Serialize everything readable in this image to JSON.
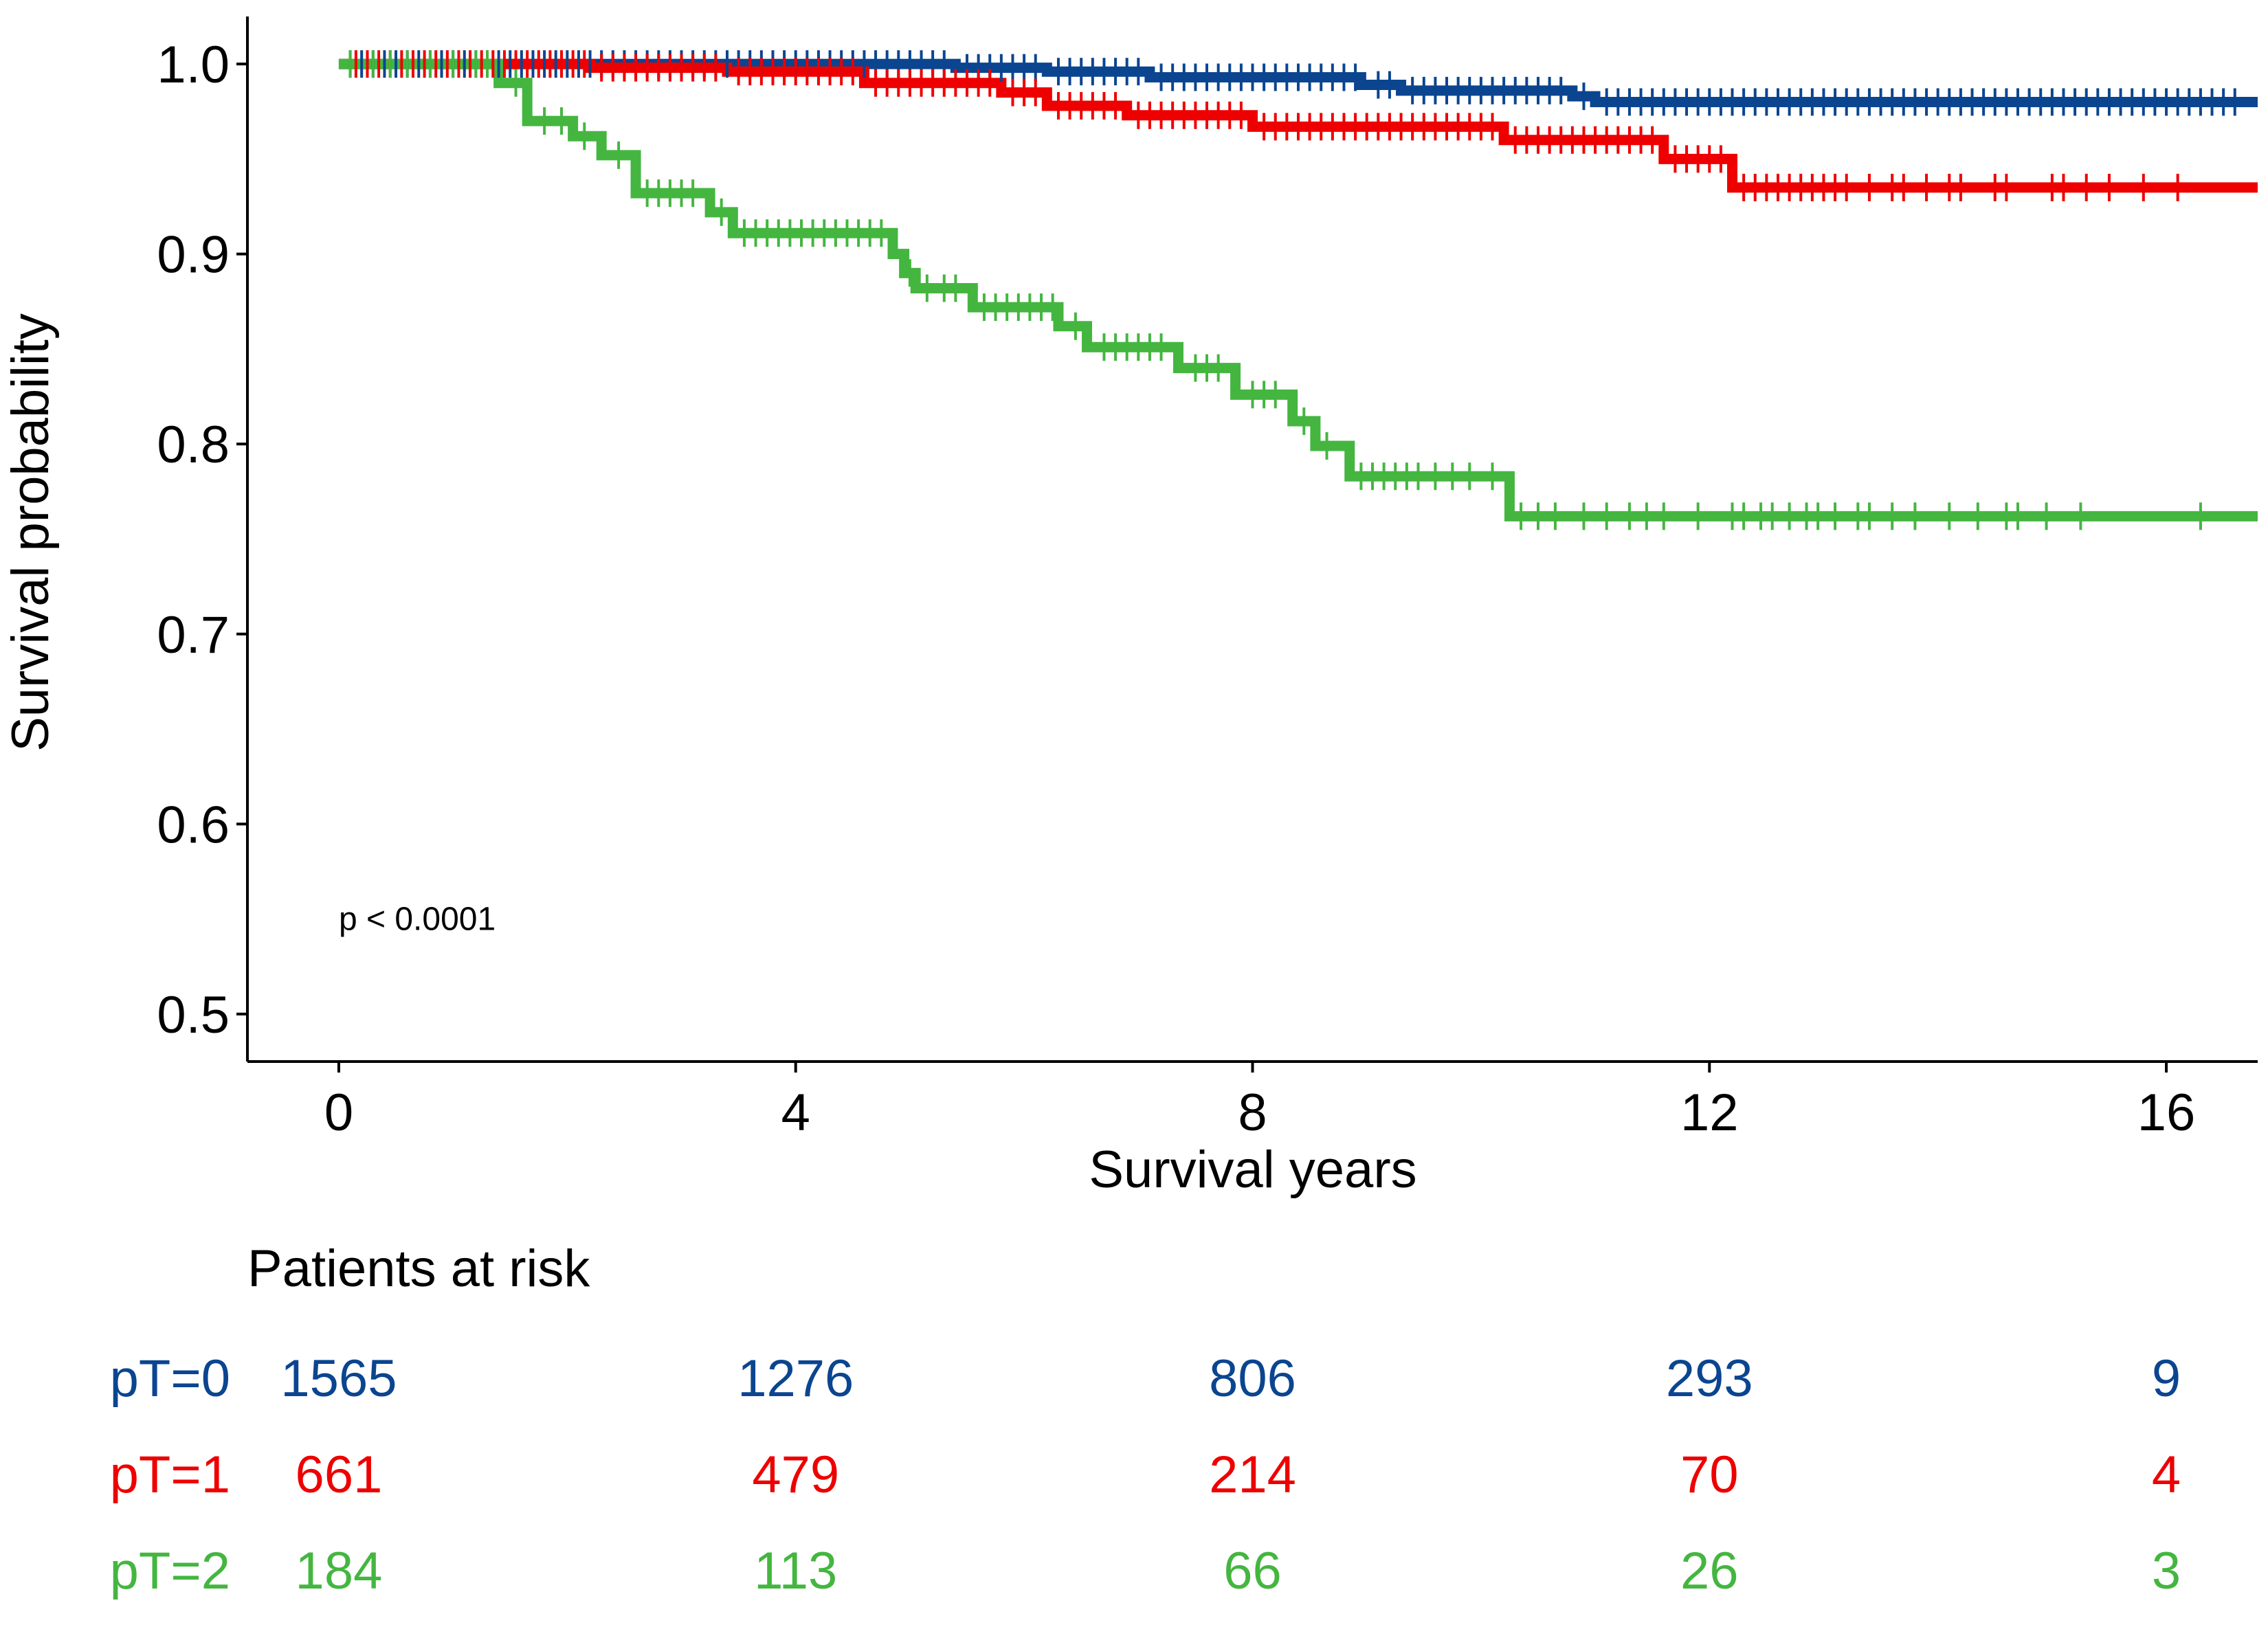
{
  "chart_data": {
    "type": "line",
    "subtype": "kaplan-meier",
    "xlabel": "Survival years",
    "ylabel": "Survival probability",
    "xlim": [
      -0.8,
      16.8
    ],
    "ylim": [
      0.475,
      1.025
    ],
    "xticks": [
      0,
      4,
      8,
      12,
      16
    ],
    "yticks": [
      0.5,
      0.6,
      0.7,
      0.8,
      0.9,
      1.0
    ],
    "ytick_labels": [
      "0.5",
      "0.6",
      "0.7",
      "0.8",
      "0.9",
      "1.0"
    ],
    "grid": false,
    "legend": "none",
    "annotation": "p < 0.0001",
    "annotation_pos": {
      "x": 0.0,
      "y": 0.55
    },
    "series": [
      {
        "name": "pT=0",
        "color": "#0B4590",
        "steps": [
          [
            0,
            1.0
          ],
          [
            5.4,
            0.998
          ],
          [
            6.2,
            0.996
          ],
          [
            7.1,
            0.993
          ],
          [
            8.95,
            0.989
          ],
          [
            9.3,
            0.986
          ],
          [
            10.8,
            0.983
          ],
          [
            11.0,
            0.98
          ],
          [
            16.8,
            0.98
          ]
        ],
        "censor_x": [
          0.1,
          0.2,
          0.3,
          0.4,
          0.5,
          0.6,
          0.7,
          0.8,
          0.9,
          1.0,
          1.1,
          1.2,
          1.3,
          1.4,
          1.5,
          1.6,
          1.7,
          1.8,
          1.9,
          2.0,
          2.1,
          2.2,
          2.3,
          2.4,
          2.5,
          2.6,
          2.7,
          2.8,
          2.9,
          3.0,
          3.1,
          3.2,
          3.3,
          3.4,
          3.5,
          3.6,
          3.7,
          3.8,
          3.9,
          4.0,
          4.1,
          4.2,
          4.3,
          4.4,
          4.5,
          4.6,
          4.7,
          4.8,
          4.9,
          5.0,
          5.1,
          5.2,
          5.3,
          5.5,
          5.6,
          5.7,
          5.8,
          5.9,
          6.0,
          6.1,
          6.3,
          6.4,
          6.5,
          6.6,
          6.7,
          6.8,
          6.9,
          7.0,
          7.2,
          7.3,
          7.4,
          7.5,
          7.6,
          7.7,
          7.8,
          7.9,
          8.0,
          8.1,
          8.2,
          8.3,
          8.4,
          8.5,
          8.6,
          8.7,
          8.8,
          8.9,
          9.1,
          9.2,
          9.4,
          9.5,
          9.6,
          9.7,
          9.8,
          9.9,
          10.0,
          10.1,
          10.2,
          10.3,
          10.4,
          10.5,
          10.6,
          10.7,
          10.9,
          11.1,
          11.2,
          11.3,
          11.4,
          11.5,
          11.6,
          11.7,
          11.8,
          11.9,
          12.0,
          12.1,
          12.2,
          12.3,
          12.4,
          12.5,
          12.6,
          12.7,
          12.8,
          12.9,
          13.0,
          13.1,
          13.2,
          13.3,
          13.4,
          13.5,
          13.6,
          13.7,
          13.8,
          13.9,
          14.0,
          14.1,
          14.2,
          14.3,
          14.4,
          14.5,
          14.6,
          14.7,
          14.8,
          14.9,
          15.0,
          15.1,
          15.2,
          15.3,
          15.4,
          15.5,
          15.6,
          15.7,
          15.8,
          15.9,
          16.0,
          16.1,
          16.2,
          16.3,
          16.4,
          16.5,
          16.6
        ],
        "at_risk": [
          "1565",
          "1276",
          "806",
          "293",
          "9"
        ]
      },
      {
        "name": "pT=1",
        "color": "#EE0000",
        "steps": [
          [
            0,
            1.0
          ],
          [
            2.2,
            0.998
          ],
          [
            3.4,
            0.996
          ],
          [
            4.6,
            0.99
          ],
          [
            5.8,
            0.985
          ],
          [
            6.2,
            0.978
          ],
          [
            6.9,
            0.973
          ],
          [
            8.0,
            0.967
          ],
          [
            10.2,
            0.96
          ],
          [
            11.6,
            0.95
          ],
          [
            12.2,
            0.935
          ],
          [
            16.8,
            0.935
          ]
        ],
        "censor_x": [
          0.15,
          0.25,
          0.35,
          0.45,
          0.55,
          0.65,
          0.75,
          0.85,
          0.95,
          1.05,
          1.15,
          1.25,
          1.35,
          1.45,
          1.55,
          1.65,
          1.75,
          1.85,
          1.95,
          2.05,
          2.15,
          2.3,
          2.4,
          2.5,
          2.6,
          2.7,
          2.8,
          2.9,
          3.0,
          3.1,
          3.2,
          3.3,
          3.5,
          3.6,
          3.7,
          3.8,
          3.9,
          4.0,
          4.1,
          4.2,
          4.3,
          4.4,
          4.5,
          4.7,
          4.8,
          4.9,
          5.0,
          5.1,
          5.2,
          5.3,
          5.4,
          5.5,
          5.6,
          5.7,
          5.9,
          6.0,
          6.1,
          6.3,
          6.4,
          6.5,
          6.6,
          6.7,
          6.8,
          7.0,
          7.1,
          7.2,
          7.3,
          7.4,
          7.5,
          7.6,
          7.7,
          7.8,
          7.9,
          8.1,
          8.2,
          8.3,
          8.4,
          8.5,
          8.6,
          8.7,
          8.8,
          8.9,
          9.0,
          9.1,
          9.2,
          9.3,
          9.4,
          9.5,
          9.6,
          9.7,
          9.8,
          9.9,
          10.0,
          10.1,
          10.3,
          10.4,
          10.5,
          10.6,
          10.7,
          10.8,
          10.9,
          11.0,
          11.1,
          11.2,
          11.3,
          11.4,
          11.5,
          11.7,
          11.8,
          11.9,
          12.0,
          12.1,
          12.3,
          12.4,
          12.5,
          12.6,
          12.7,
          12.8,
          12.9,
          13.0,
          13.1,
          13.2,
          13.4,
          13.6,
          13.7,
          13.9,
          14.1,
          14.2,
          14.5,
          14.6,
          15.0,
          15.1,
          15.3,
          15.5,
          15.8,
          16.1
        ],
        "at_risk": [
          "661",
          "479",
          "214",
          "70",
          "4"
        ]
      },
      {
        "name": "pT=2",
        "color": "#44B640",
        "steps": [
          [
            0,
            1.0
          ],
          [
            1.4,
            0.99
          ],
          [
            1.65,
            0.97
          ],
          [
            2.05,
            0.962
          ],
          [
            2.3,
            0.952
          ],
          [
            2.6,
            0.932
          ],
          [
            3.25,
            0.922
          ],
          [
            3.45,
            0.911
          ],
          [
            4.85,
            0.9
          ],
          [
            4.95,
            0.89
          ],
          [
            5.05,
            0.882
          ],
          [
            5.55,
            0.872
          ],
          [
            6.3,
            0.862
          ],
          [
            6.55,
            0.851
          ],
          [
            7.35,
            0.84
          ],
          [
            7.85,
            0.826
          ],
          [
            8.35,
            0.812
          ],
          [
            8.55,
            0.799
          ],
          [
            8.85,
            0.783
          ],
          [
            10.25,
            0.762
          ],
          [
            16.8,
            0.762
          ]
        ],
        "censor_x": [
          0.1,
          0.3,
          0.45,
          0.6,
          0.8,
          1.0,
          1.2,
          1.3,
          1.55,
          1.8,
          1.95,
          2.15,
          2.45,
          2.7,
          2.8,
          2.9,
          3.0,
          3.1,
          3.35,
          3.55,
          3.65,
          3.75,
          3.85,
          3.95,
          4.05,
          4.15,
          4.25,
          4.35,
          4.45,
          4.55,
          4.65,
          4.75,
          5.0,
          5.15,
          5.3,
          5.4,
          5.65,
          5.75,
          5.85,
          5.95,
          6.05,
          6.15,
          6.25,
          6.45,
          6.7,
          6.8,
          6.9,
          7.0,
          7.1,
          7.2,
          7.5,
          7.6,
          7.7,
          8.0,
          8.1,
          8.2,
          8.45,
          8.65,
          8.95,
          9.05,
          9.15,
          9.25,
          9.35,
          9.45,
          9.6,
          9.75,
          9.9,
          10.1,
          10.35,
          10.5,
          10.65,
          10.9,
          11.1,
          11.3,
          11.45,
          11.6,
          11.9,
          12.2,
          12.3,
          12.45,
          12.55,
          12.7,
          12.85,
          12.95,
          13.1,
          13.3,
          13.4,
          13.6,
          13.8,
          14.1,
          14.35,
          14.6,
          14.7,
          14.95,
          15.25,
          16.3
        ],
        "at_risk": [
          "184",
          "113",
          "66",
          "26",
          "3"
        ]
      }
    ],
    "risk_table": {
      "title": "Patients at risk",
      "times": [
        0,
        4,
        8,
        12,
        16
      ]
    }
  }
}
